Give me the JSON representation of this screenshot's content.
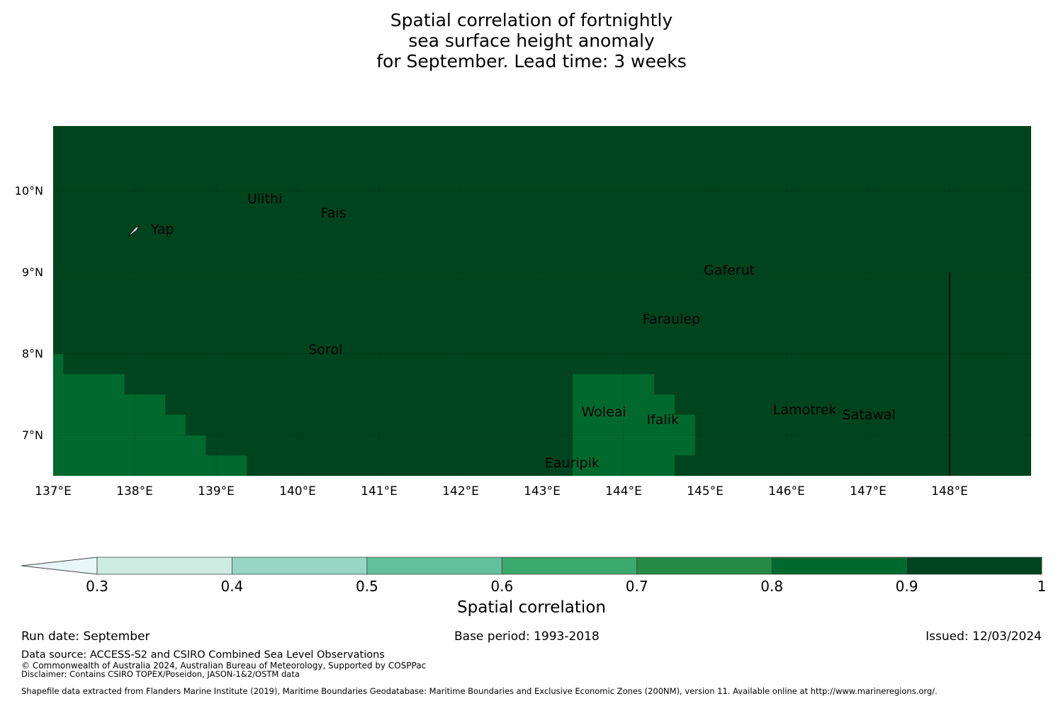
{
  "title": {
    "line1": "Spatial correlation of fortnightly",
    "line2": "sea surface height anomaly",
    "line3": "for September. Lead time: 3 weeks"
  },
  "map": {
    "extent": {
      "lon_min": 137.0,
      "lon_max": 149.0,
      "lat_min": 6.5,
      "lat_max": 10.8
    },
    "lat_ticks": [
      {
        "value": 10,
        "label": "10°N"
      },
      {
        "value": 9,
        "label": "9°N"
      },
      {
        "value": 8,
        "label": "8°N"
      },
      {
        "value": 7,
        "label": "7°N"
      }
    ],
    "lon_ticks": [
      {
        "value": 137,
        "label": "137°E"
      },
      {
        "value": 138,
        "label": "138°E"
      },
      {
        "value": 139,
        "label": "139°E"
      },
      {
        "value": 140,
        "label": "140°E"
      },
      {
        "value": 141,
        "label": "141°E"
      },
      {
        "value": 142,
        "label": "142°E"
      },
      {
        "value": 143,
        "label": "143°E"
      },
      {
        "value": 144,
        "label": "144°E"
      },
      {
        "value": 145,
        "label": "145°E"
      },
      {
        "value": 146,
        "label": "146°E"
      },
      {
        "value": 147,
        "label": "147°E"
      },
      {
        "value": 148,
        "label": "148°E"
      }
    ],
    "background_class": "0.9-1",
    "regions": [
      {
        "class": "0.8-0.9",
        "polygon_lonlat": [
          [
            137.0,
            8.0
          ],
          [
            137.125,
            8.0
          ],
          [
            137.125,
            7.75
          ],
          [
            137.875,
            7.75
          ],
          [
            137.875,
            7.5
          ],
          [
            138.375,
            7.5
          ],
          [
            138.375,
            7.25
          ],
          [
            138.625,
            7.25
          ],
          [
            138.625,
            7.0
          ],
          [
            138.875,
            7.0
          ],
          [
            138.875,
            6.75
          ],
          [
            139.375,
            6.75
          ],
          [
            139.375,
            6.5
          ],
          [
            137.0,
            6.5
          ]
        ]
      },
      {
        "class": "0.8-0.9",
        "polygon_lonlat": [
          [
            143.375,
            7.75
          ],
          [
            144.375,
            7.75
          ],
          [
            144.375,
            7.5
          ],
          [
            144.625,
            7.5
          ],
          [
            144.625,
            7.25
          ],
          [
            144.875,
            7.25
          ],
          [
            144.875,
            6.75
          ],
          [
            144.625,
            6.75
          ],
          [
            144.625,
            6.5
          ],
          [
            143.375,
            6.5
          ]
        ]
      }
    ],
    "eez_boundary_lon": 148.0,
    "places": [
      {
        "name": "Ulithi",
        "lon": 139.4,
        "lat": 9.88
      },
      {
        "name": "Fais",
        "lon": 140.3,
        "lat": 9.7
      },
      {
        "name": "Yap",
        "lon": 138.2,
        "lat": 9.5
      },
      {
        "name": "Gaferut",
        "lon": 145.0,
        "lat": 9.0
      },
      {
        "name": "Faraulep",
        "lon": 144.25,
        "lat": 8.4
      },
      {
        "name": "Sorol",
        "lon": 140.15,
        "lat": 8.02
      },
      {
        "name": "Woleai",
        "lon": 143.5,
        "lat": 7.26
      },
      {
        "name": "Ifalik",
        "lon": 144.3,
        "lat": 7.16
      },
      {
        "name": "Lamotrek",
        "lon": 145.85,
        "lat": 7.28
      },
      {
        "name": "Satawal",
        "lon": 146.7,
        "lat": 7.22
      },
      {
        "name": "Eauripik",
        "lon": 143.05,
        "lat": 6.63
      }
    ]
  },
  "colorbar": {
    "bins": [
      {
        "lo": 0.3,
        "hi": 0.4,
        "color": "#cdebe1"
      },
      {
        "lo": 0.4,
        "hi": 0.5,
        "color": "#98d6c3"
      },
      {
        "lo": 0.5,
        "hi": 0.6,
        "color": "#62c09f"
      },
      {
        "lo": 0.6,
        "hi": 0.7,
        "color": "#3ca96c"
      },
      {
        "lo": 0.7,
        "hi": 0.8,
        "color": "#238b44"
      },
      {
        "lo": 0.8,
        "hi": 0.9,
        "color": "#006a2e"
      },
      {
        "lo": 0.9,
        "hi": 1.0,
        "color": "#00441d"
      }
    ],
    "under_color": "#e8f6f9",
    "extend": "min",
    "ticks": [
      "0.3",
      "0.4",
      "0.5",
      "0.6",
      "0.7",
      "0.8",
      "0.9",
      "1"
    ],
    "label": "Spatial correlation"
  },
  "footer": {
    "run_date": "Run date: September",
    "base_period": "Base period: 1993-2018",
    "issued": "Issued: 12/03/2024",
    "data_source": "Data source: ACCESS-S2 and CSIRO Combined Sea Level Observations",
    "copyright": "© Commonwealth of Australia 2024, Australian Bureau of Meteorology, Supported by COSPPac",
    "disclaimer": "Disclaimer: Contains CSIRO TOPEX/Poseidon, JASON-1&2/OSTM data",
    "shapefile": "Shapefile data extracted from Flanders Marine Institute (2019), Maritime Boundaries Geodatabase: Maritime Boundaries and Exclusive Economic Zones (200NM), version 11. Available online at http://www.marineregions.org/."
  }
}
